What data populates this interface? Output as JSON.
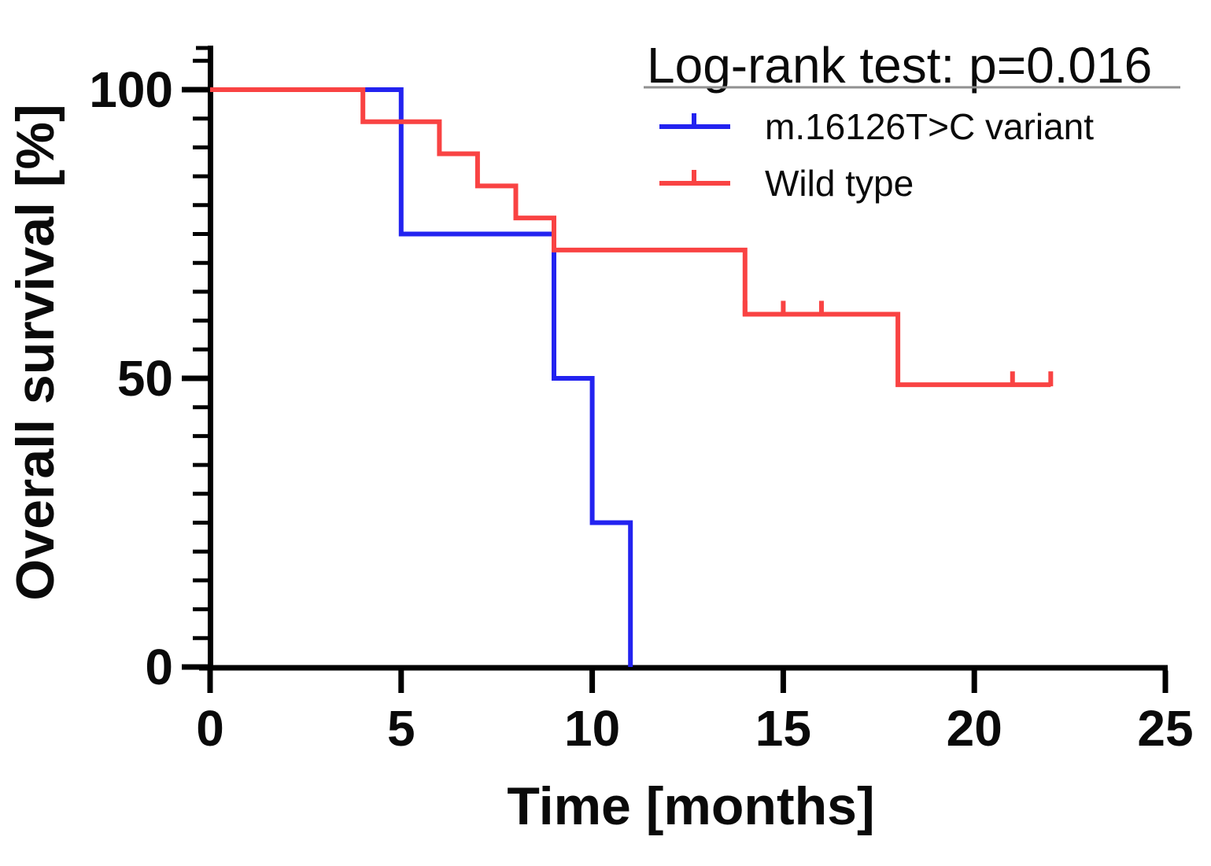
{
  "chart_data": {
    "type": "line",
    "subtype": "kaplan-meier-step-curves",
    "title": "Log-rank test: p=0.016",
    "title_underlined": true,
    "xlabel": "Time [months]",
    "ylabel": "Overall survival [%]",
    "xlim": [
      0,
      25
    ],
    "ylim": [
      0,
      100
    ],
    "x_ticks": [
      0,
      5,
      10,
      15,
      20,
      25
    ],
    "y_major_ticks": [
      0,
      50,
      100
    ],
    "y_minor_tick_step": 5,
    "y_minor_tick_max": 105,
    "grid": false,
    "legend_position": "top-right",
    "series": [
      {
        "name": "m.16126T>C variant",
        "color": "#2323f0",
        "steps": [
          [
            0,
            100
          ],
          [
            5,
            100
          ],
          [
            5,
            75
          ],
          [
            9,
            75
          ],
          [
            9,
            50
          ],
          [
            10,
            50
          ],
          [
            10,
            25
          ],
          [
            11,
            25
          ],
          [
            11,
            0
          ]
        ],
        "censor_marks": []
      },
      {
        "name": "Wild type",
        "color": "#f94343",
        "steps": [
          [
            0,
            100
          ],
          [
            4,
            100
          ],
          [
            4,
            94.44
          ],
          [
            6,
            94.44
          ],
          [
            6,
            88.89
          ],
          [
            7,
            88.89
          ],
          [
            7,
            83.33
          ],
          [
            8,
            83.33
          ],
          [
            8,
            77.78
          ],
          [
            9,
            77.78
          ],
          [
            9,
            72.22
          ],
          [
            14,
            72.22
          ],
          [
            14,
            61.11
          ],
          [
            18,
            61.11
          ],
          [
            18,
            48.89
          ],
          [
            22,
            48.89
          ]
        ],
        "censor_marks": [
          [
            14,
            61.11
          ],
          [
            15,
            61.11
          ],
          [
            16,
            61.11
          ],
          [
            21,
            48.89
          ],
          [
            22,
            48.89
          ]
        ]
      }
    ]
  },
  "colors": {
    "axis": "#000000",
    "text": "#0a0a0a",
    "legend_underline": "#909090",
    "background": "#ffffff"
  }
}
